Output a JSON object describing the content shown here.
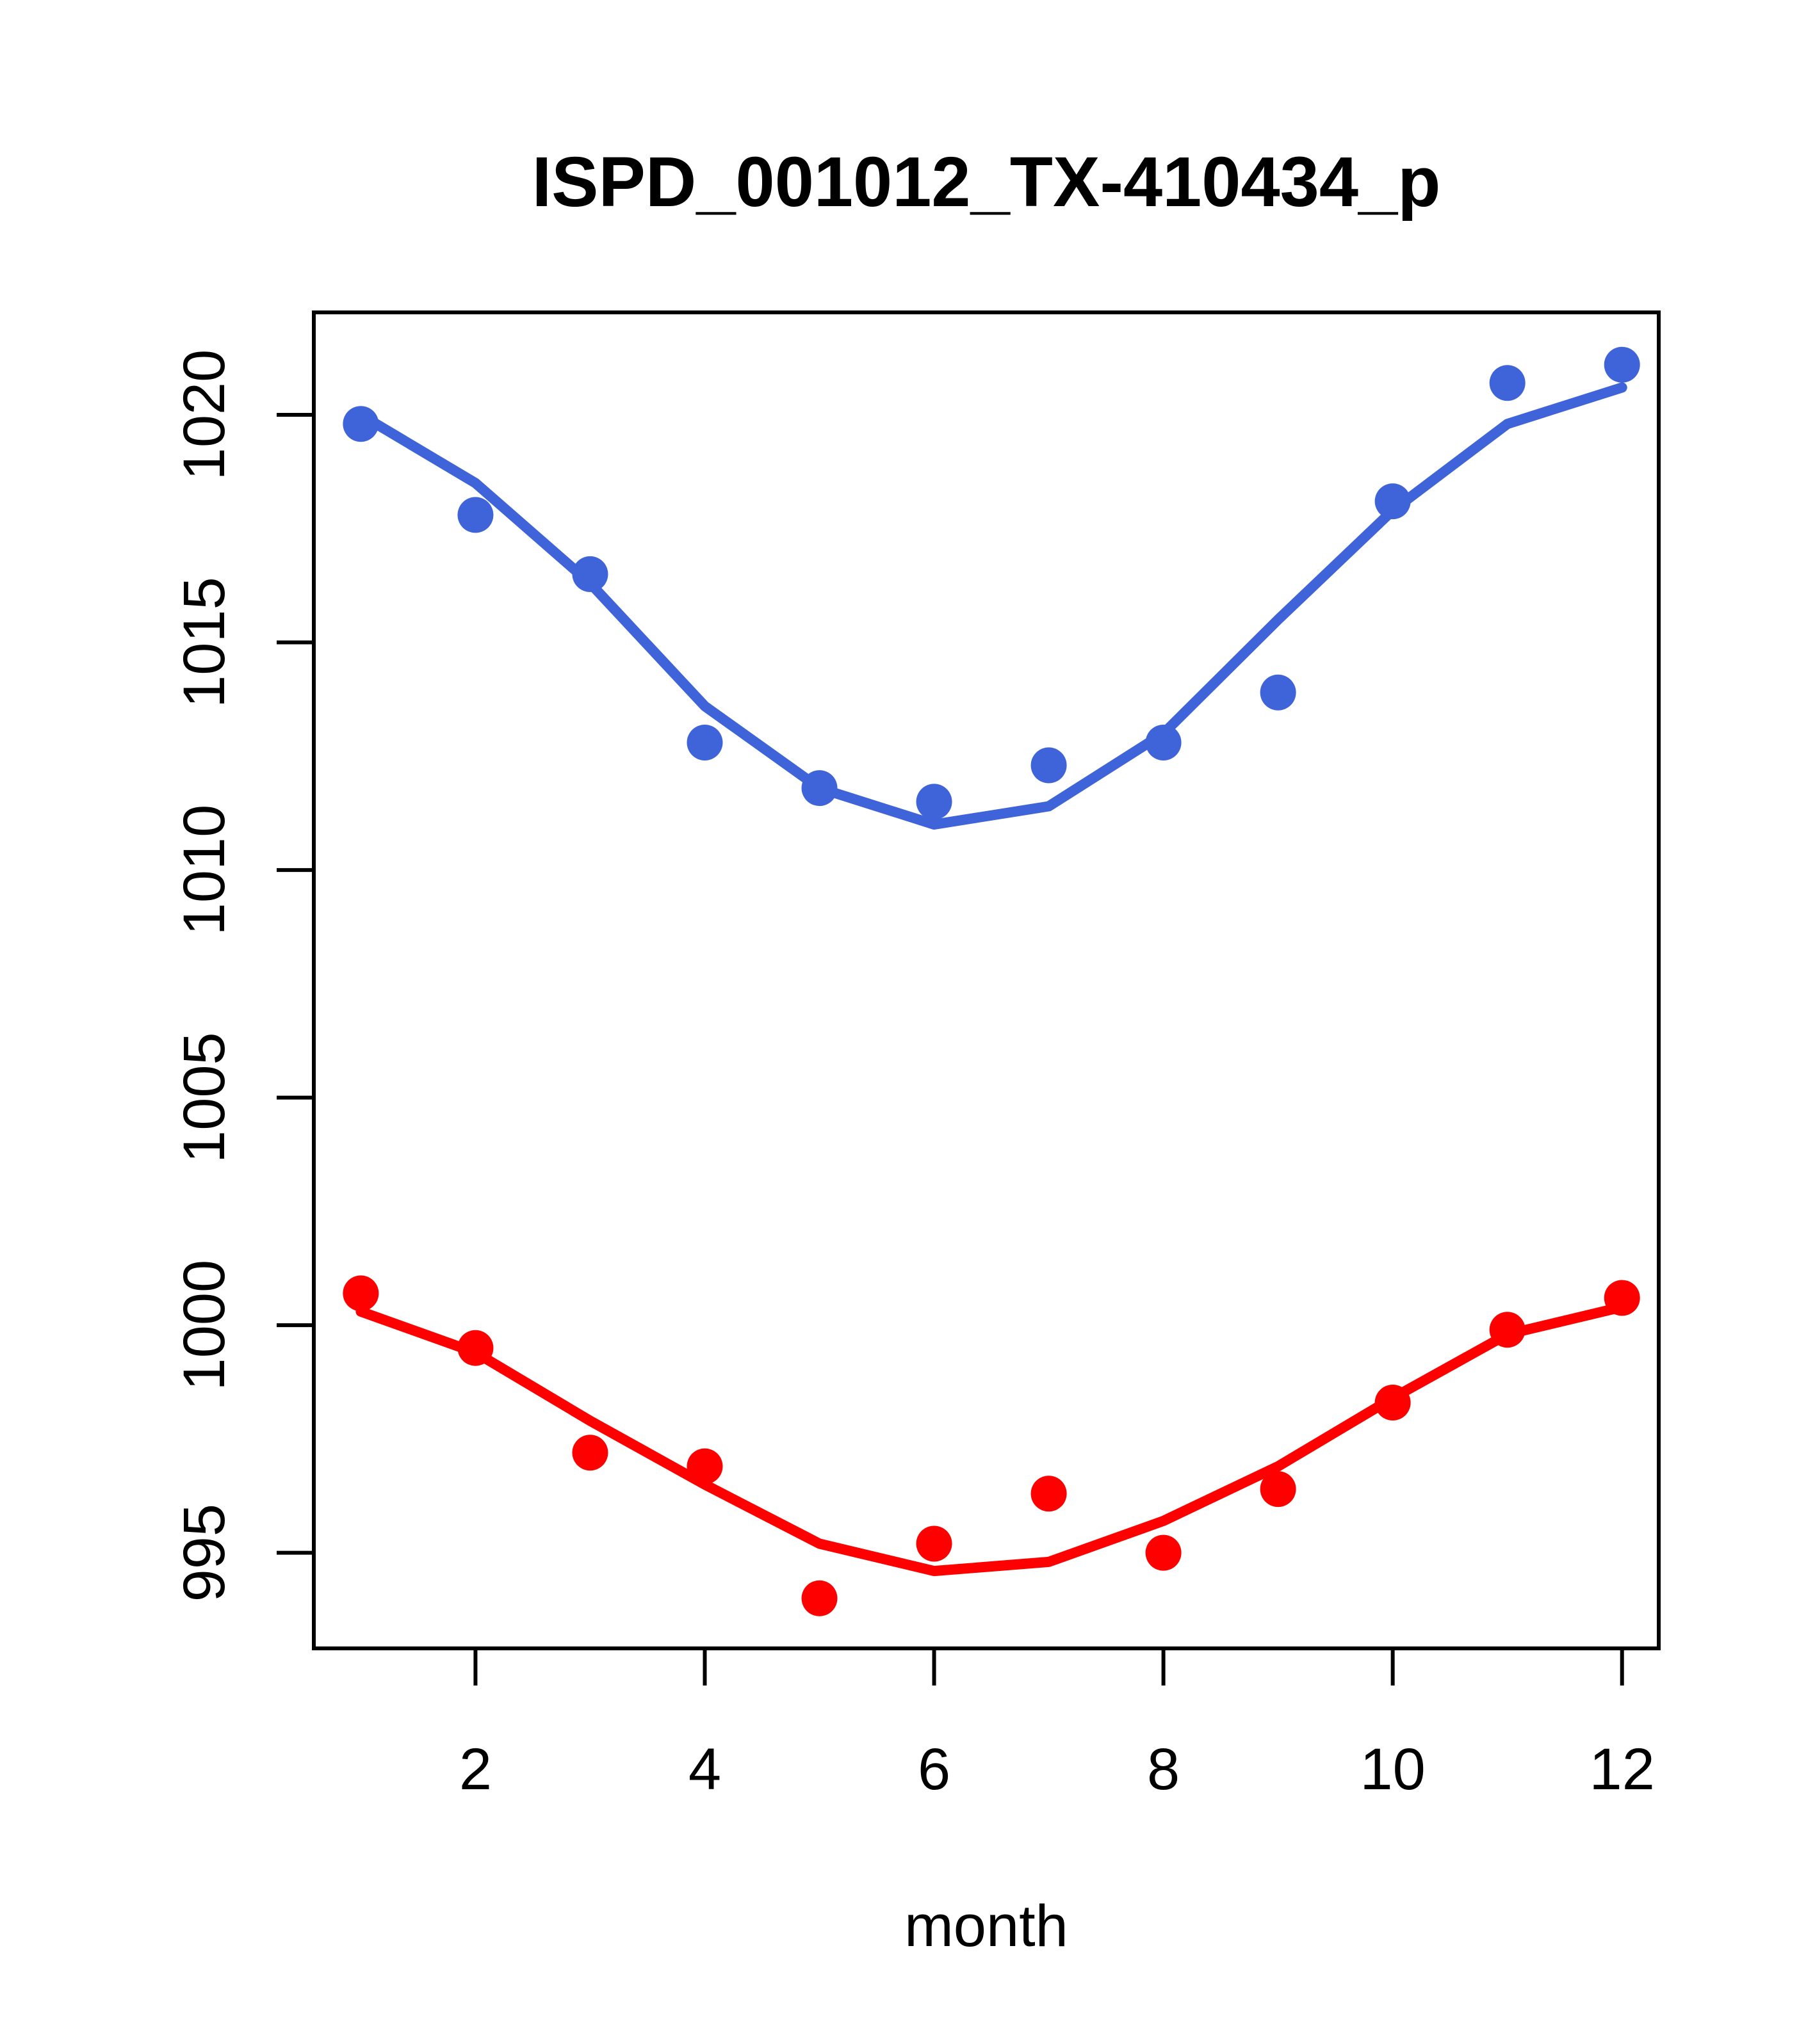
{
  "title": "ISPD_001012_TX-410434_p",
  "xlabel": "month",
  "colors": {
    "series1": "#3F64D9",
    "series2": "#FF0000",
    "axis": "#000000",
    "background": "#FFFFFF"
  },
  "chart_data": {
    "type": "scatter",
    "title": "ISPD_001012_TX-410434_p",
    "xlabel": "month",
    "ylabel": "",
    "x": [
      1,
      2,
      3,
      4,
      5,
      6,
      7,
      8,
      9,
      10,
      11,
      12
    ],
    "x_ticks": [
      2,
      4,
      6,
      8,
      10,
      12
    ],
    "y_ticks": [
      995,
      1000,
      1005,
      1010,
      1015,
      1020
    ],
    "xlim": [
      0.59,
      12.32
    ],
    "ylim": [
      992.9,
      1022.25
    ],
    "grid": false,
    "legend": "none",
    "series": [
      {
        "name": "series-1-points",
        "kind": "points",
        "color": "#3F64D9",
        "values": [
          1019.8,
          1017.8,
          1016.5,
          1012.8,
          1011.8,
          1011.5,
          1012.3,
          1012.8,
          1013.9,
          1018.1,
          1020.7,
          1021.1
        ]
      },
      {
        "name": "series-1-smooth",
        "kind": "line",
        "color": "#3F64D9",
        "values": [
          1020.0,
          1018.5,
          1016.3,
          1013.6,
          1011.8,
          1011.0,
          1011.4,
          1013.0,
          1015.5,
          1017.9,
          1019.8,
          1020.6
        ]
      },
      {
        "name": "series-2-points",
        "kind": "points",
        "color": "#FF0000",
        "values": [
          1000.7,
          999.5,
          997.2,
          996.9,
          994.0,
          995.2,
          996.3,
          995.0,
          996.4,
          998.3,
          999.9,
          1000.6
        ]
      },
      {
        "name": "series-2-smooth",
        "kind": "line",
        "color": "#FF0000",
        "values": [
          1000.3,
          999.4,
          997.9,
          996.5,
          995.2,
          994.6,
          994.8,
          995.7,
          996.9,
          998.4,
          999.8,
          1000.4
        ]
      }
    ]
  }
}
